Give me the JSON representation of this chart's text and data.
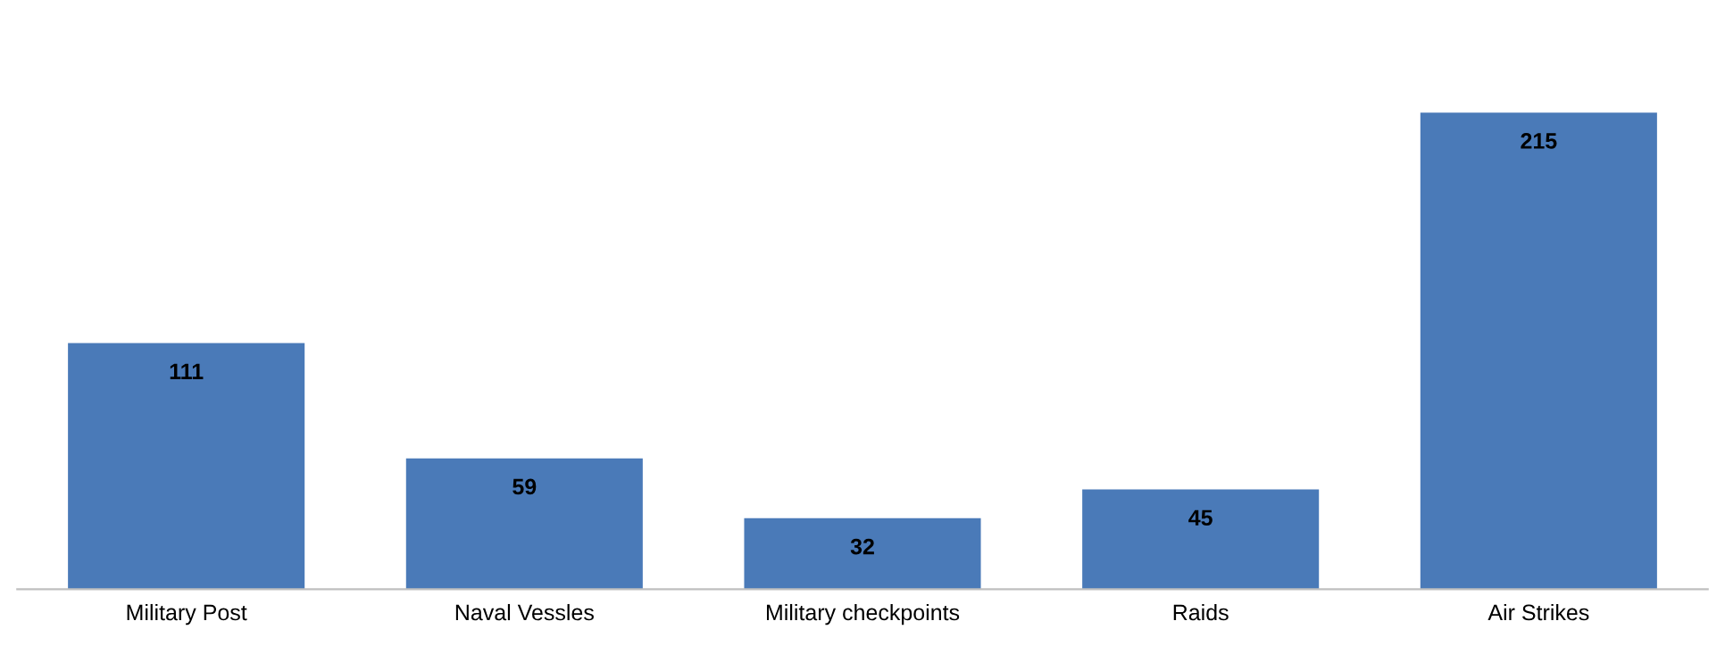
{
  "chart_data": {
    "type": "bar",
    "categories": [
      "Military Post",
      "Naval Vessles",
      "Military checkpoints",
      "Raids",
      "Air Strikes"
    ],
    "values": [
      111,
      59,
      32,
      45,
      215
    ],
    "color": "#4a7ab8",
    "data_labels": true,
    "grid": false,
    "legend": false
  }
}
